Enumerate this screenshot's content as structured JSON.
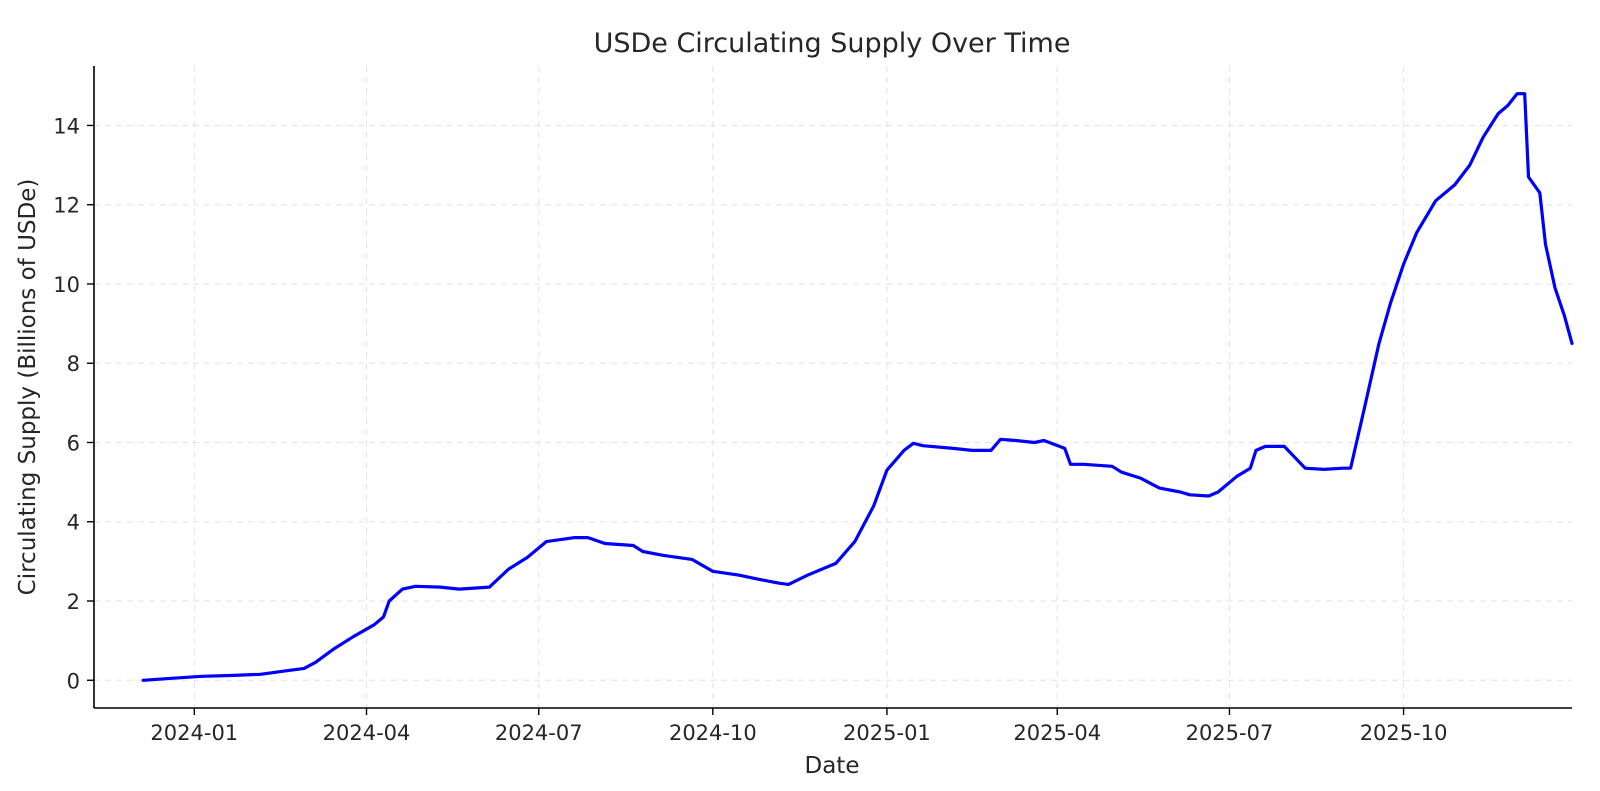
{
  "chart_data": {
    "type": "line",
    "title": "USDe Circulating Supply Over Time",
    "xlabel": "Date",
    "ylabel": "Circulating Supply (Billions of USDe)",
    "xlim": [
      "2023-11-09",
      "2025-12-29"
    ],
    "ylim": [
      -0.7,
      15.5
    ],
    "x_ticks": [
      "2024-01",
      "2024-04",
      "2024-07",
      "2024-10",
      "2025-01",
      "2025-04",
      "2025-07",
      "2025-10"
    ],
    "y_ticks": [
      0,
      2,
      4,
      6,
      8,
      10,
      12,
      14
    ],
    "grid": true,
    "line_color": "#0000ff",
    "series": [
      {
        "points": [
          [
            "2023-12-05",
            0.0
          ],
          [
            "2023-12-20",
            0.05
          ],
          [
            "2024-01-05",
            0.1
          ],
          [
            "2024-01-20",
            0.12
          ],
          [
            "2024-02-05",
            0.15
          ],
          [
            "2024-02-20",
            0.25
          ],
          [
            "2024-02-28",
            0.3
          ],
          [
            "2024-03-05",
            0.45
          ],
          [
            "2024-03-15",
            0.8
          ],
          [
            "2024-03-25",
            1.1
          ],
          [
            "2024-04-05",
            1.4
          ],
          [
            "2024-04-10",
            1.6
          ],
          [
            "2024-04-13",
            2.0
          ],
          [
            "2024-04-20",
            2.3
          ],
          [
            "2024-04-27",
            2.37
          ],
          [
            "2024-05-10",
            2.35
          ],
          [
            "2024-05-20",
            2.3
          ],
          [
            "2024-06-05",
            2.35
          ],
          [
            "2024-06-15",
            2.8
          ],
          [
            "2024-06-25",
            3.1
          ],
          [
            "2024-07-05",
            3.5
          ],
          [
            "2024-07-20",
            3.6
          ],
          [
            "2024-07-27",
            3.6
          ],
          [
            "2024-08-05",
            3.45
          ],
          [
            "2024-08-20",
            3.4
          ],
          [
            "2024-08-25",
            3.25
          ],
          [
            "2024-09-05",
            3.15
          ],
          [
            "2024-09-20",
            3.05
          ],
          [
            "2024-10-01",
            2.75
          ],
          [
            "2024-10-15",
            2.65
          ],
          [
            "2024-10-25",
            2.55
          ],
          [
            "2024-11-05",
            2.45
          ],
          [
            "2024-11-10",
            2.42
          ],
          [
            "2024-11-20",
            2.65
          ],
          [
            "2024-12-05",
            2.95
          ],
          [
            "2024-12-15",
            3.5
          ],
          [
            "2024-12-25",
            4.4
          ],
          [
            "2025-01-01",
            5.3
          ],
          [
            "2025-01-10",
            5.8
          ],
          [
            "2025-01-15",
            5.98
          ],
          [
            "2025-01-20",
            5.92
          ],
          [
            "2025-02-05",
            5.85
          ],
          [
            "2025-02-15",
            5.8
          ],
          [
            "2025-02-25",
            5.8
          ],
          [
            "2025-03-02",
            6.08
          ],
          [
            "2025-03-10",
            6.05
          ],
          [
            "2025-03-20",
            6.0
          ],
          [
            "2025-03-25",
            6.05
          ],
          [
            "2025-04-05",
            5.85
          ],
          [
            "2025-04-08",
            5.45
          ],
          [
            "2025-04-15",
            5.45
          ],
          [
            "2025-04-30",
            5.4
          ],
          [
            "2025-05-05",
            5.25
          ],
          [
            "2025-05-15",
            5.1
          ],
          [
            "2025-05-25",
            4.85
          ],
          [
            "2025-06-05",
            4.75
          ],
          [
            "2025-06-10",
            4.68
          ],
          [
            "2025-06-20",
            4.65
          ],
          [
            "2025-06-25",
            4.75
          ],
          [
            "2025-07-05",
            5.15
          ],
          [
            "2025-07-12",
            5.35
          ],
          [
            "2025-07-15",
            5.8
          ],
          [
            "2025-07-20",
            5.9
          ],
          [
            "2025-07-30",
            5.9
          ],
          [
            "2025-08-05",
            5.6
          ],
          [
            "2025-08-10",
            5.35
          ],
          [
            "2025-08-20",
            5.32
          ],
          [
            "2025-08-30",
            5.35
          ],
          [
            "2025-09-03",
            5.35
          ],
          [
            "2025-09-10",
            6.8
          ],
          [
            "2025-09-18",
            8.5
          ],
          [
            "2025-09-24",
            9.5
          ],
          [
            "2025-10-01",
            10.5
          ],
          [
            "2025-10-08",
            11.3
          ],
          [
            "2025-10-18",
            12.1
          ],
          [
            "2025-10-28",
            12.5
          ],
          [
            "2025-11-05",
            13.0
          ],
          [
            "2025-11-12",
            13.7
          ],
          [
            "2025-11-20",
            14.3
          ],
          [
            "2025-11-25",
            14.5
          ],
          [
            "2025-11-30",
            14.8
          ],
          [
            "2025-12-04",
            14.8
          ],
          [
            "2025-12-06",
            12.7
          ],
          [
            "2025-12-12",
            12.3
          ],
          [
            "2025-12-15",
            11.0
          ],
          [
            "2025-12-20",
            9.9
          ],
          [
            "2025-12-25",
            9.2
          ],
          [
            "2025-12-29",
            8.5
          ]
        ]
      }
    ]
  }
}
